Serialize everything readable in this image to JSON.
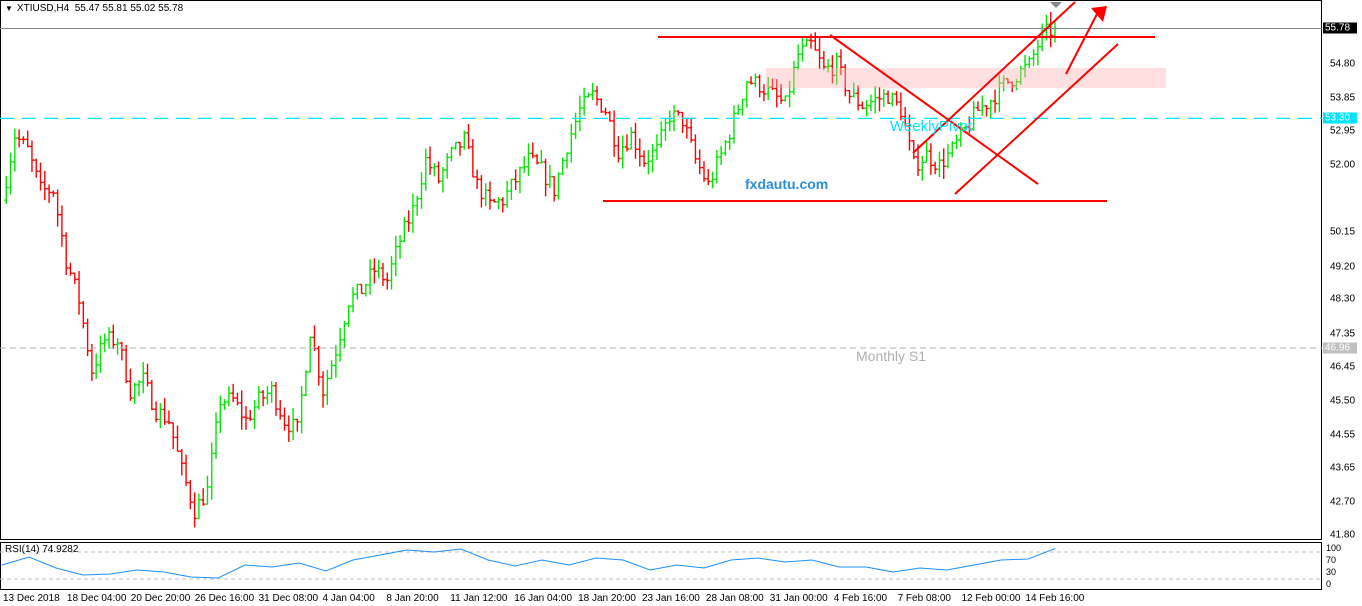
{
  "header": {
    "symbol_timeframe": "XTIUSD,H4",
    "ohlc": "55.47 55.81 55.02 55.78"
  },
  "price_axis": {
    "ticks": [
      "54.80",
      "53.85",
      "52.95",
      "52.00",
      "50.15",
      "49.20",
      "48.30",
      "47.35",
      "46.45",
      "45.50",
      "44.55",
      "43.65",
      "42.70",
      "41.80"
    ],
    "current_price": "55.78",
    "weekly_pivot_price": "53.30",
    "monthly_s1_price": "46.96"
  },
  "annotations": {
    "watermark": "fxdautu.com",
    "weekly_pivot": "WeeklyPivot",
    "monthly_s1": "Monthly S1"
  },
  "time_axis": [
    "13 Dec 2018",
    "18 Dec 04:00",
    "20 Dec 20:00",
    "26 Dec 16:00",
    "31 Dec 08:00",
    "4 Jan 04:00",
    "8 Jan 20:00",
    "11 Jan 12:00",
    "16 Jan 04:00",
    "18 Jan 20:00",
    "23 Jan 16:00",
    "28 Jan 08:00",
    "31 Jan 00:00",
    "4 Feb 16:00",
    "7 Feb 08:00",
    "12 Feb 00:00",
    "14 Feb 16:00"
  ],
  "rsi": {
    "label": "RSI(14) 74.9282",
    "levels": [
      "100",
      "70",
      "30",
      "0"
    ]
  },
  "colors": {
    "up": "#00e600",
    "down": "#ff0000",
    "pivot": "#00e5ff",
    "s1": "#b0b0b0",
    "rsi": "#1e90ff",
    "drawing": "#ff0000",
    "zone": "#ffdede"
  },
  "chart_data": {
    "type": "ohlc",
    "symbol": "XTIUSD",
    "timeframe": "H4",
    "ylim": [
      41.8,
      55.9
    ],
    "close_path": [
      51.04,
      52.84,
      52.42,
      51.32,
      51.32,
      49.39,
      48.28,
      46.35,
      47.18,
      47.18,
      45.79,
      46.07,
      45.24,
      44.96,
      43.58,
      42.48,
      43.03,
      45.52,
      45.52,
      44.96,
      45.52,
      45.79,
      44.96,
      44.69,
      47.45,
      45.79,
      46.9,
      48.28,
      48.56,
      49.11,
      48.83,
      49.94,
      50.77,
      52.15,
      51.6,
      52.29,
      52.7,
      51.46,
      50.9,
      51.04,
      51.6,
      52.15,
      51.87,
      51.32,
      52.56,
      53.53,
      53.94,
      53.53,
      52.42,
      52.84,
      52.15,
      52.42,
      53.39,
      53.25,
      52.15,
      51.46,
      52.29,
      53.25,
      54.36,
      54.22,
      53.94,
      53.67,
      55.05,
      55.32,
      54.63,
      54.77,
      53.94,
      53.67,
      53.81,
      53.94,
      53.53,
      52.01,
      52.29,
      52.01,
      52.42,
      52.98,
      53.53,
      53.81,
      54.22,
      54.5,
      54.77,
      55.6,
      55.78
    ],
    "horizontal_levels": {
      "weekly_pivot": 53.3,
      "monthly_s1": 46.96
    },
    "rsi_period": 14,
    "rsi_values": [
      50.7,
      62.6,
      46.3,
      35.9,
      37.4,
      43.3,
      40.4,
      33.0,
      31.5,
      50.7,
      47.8,
      53.7,
      41.9,
      58.1,
      65.6,
      73.0,
      70.0,
      74.4,
      58.1,
      49.3,
      58.1,
      50.7,
      61.1,
      58.1,
      43.3,
      50.7,
      46.3,
      58.1,
      61.1,
      55.2,
      58.1,
      47.8,
      47.8,
      40.4,
      46.3,
      43.3,
      50.7,
      58.1,
      59.6,
      74.9
    ],
    "rsi_levels": [
      70,
      30
    ]
  }
}
